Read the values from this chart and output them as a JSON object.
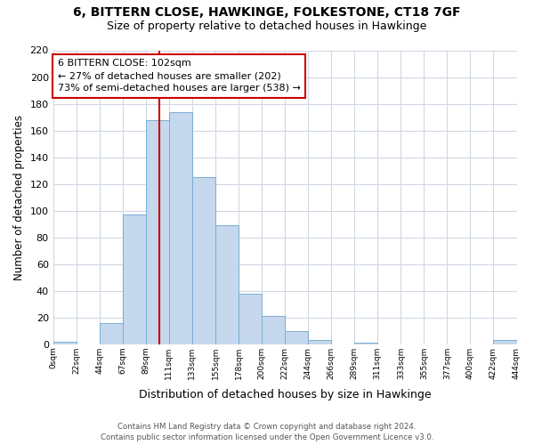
{
  "title": "6, BITTERN CLOSE, HAWKINGE, FOLKESTONE, CT18 7GF",
  "subtitle": "Size of property relative to detached houses in Hawkinge",
  "xlabel": "Distribution of detached houses by size in Hawkinge",
  "ylabel": "Number of detached properties",
  "bin_labels": [
    "0sqm",
    "22sqm",
    "44sqm",
    "67sqm",
    "89sqm",
    "111sqm",
    "133sqm",
    "155sqm",
    "178sqm",
    "200sqm",
    "222sqm",
    "244sqm",
    "266sqm",
    "289sqm",
    "311sqm",
    "333sqm",
    "355sqm",
    "377sqm",
    "400sqm",
    "422sqm",
    "444sqm"
  ],
  "bar_values": [
    2,
    0,
    16,
    97,
    168,
    174,
    125,
    89,
    38,
    21,
    10,
    3,
    0,
    1,
    0,
    0,
    0,
    0,
    0,
    3
  ],
  "bar_color": "#c5d8ed",
  "bar_edge_color": "#7bafd4",
  "grid_color": "#d0d8e4",
  "marker_line_color": "#cc0000",
  "annotation_text_line1": "6 BITTERN CLOSE: 102sqm",
  "annotation_text_line2": "← 27% of detached houses are smaller (202)",
  "annotation_text_line3": "73% of semi-detached houses are larger (538) →",
  "annotation_box_color": "#cc0000",
  "ylim": [
    0,
    220
  ],
  "yticks": [
    0,
    20,
    40,
    60,
    80,
    100,
    120,
    140,
    160,
    180,
    200,
    220
  ],
  "footer_line1": "Contains HM Land Registry data © Crown copyright and database right 2024.",
  "footer_line2": "Contains public sector information licensed under the Open Government Licence v3.0."
}
